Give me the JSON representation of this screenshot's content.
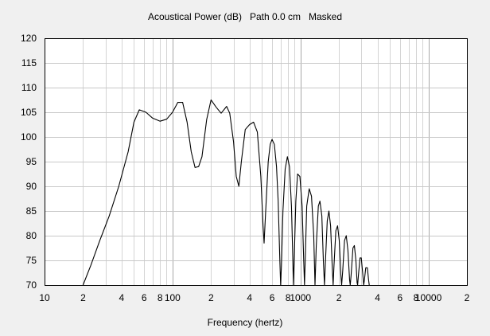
{
  "chart_data": {
    "type": "line",
    "title": "Acoustical Power (dB)   Path 0.0 cm   Masked",
    "xlabel": "Frequency (hertz)",
    "ylabel": "",
    "x_scale": "log",
    "xlim": [
      10,
      20000
    ],
    "ylim": [
      70,
      120
    ],
    "grid": true,
    "legend": "none",
    "y_ticks": [
      70,
      75,
      80,
      85,
      90,
      95,
      100,
      105,
      110,
      115,
      120
    ],
    "x_ticks": [
      {
        "value": 10,
        "label": "10"
      },
      {
        "value": 20,
        "label": "2"
      },
      {
        "value": 40,
        "label": "4"
      },
      {
        "value": 60,
        "label": "6"
      },
      {
        "value": 80,
        "label": "8"
      },
      {
        "value": 100,
        "label": "100"
      },
      {
        "value": 200,
        "label": "2"
      },
      {
        "value": 400,
        "label": "4"
      },
      {
        "value": 600,
        "label": "6"
      },
      {
        "value": 800,
        "label": "8"
      },
      {
        "value": 1000,
        "label": "1000"
      },
      {
        "value": 2000,
        "label": "2"
      },
      {
        "value": 4000,
        "label": "4"
      },
      {
        "value": 6000,
        "label": "6"
      },
      {
        "value": 8000,
        "label": "8"
      },
      {
        "value": 10000,
        "label": "10000"
      },
      {
        "value": 20000,
        "label": "2"
      }
    ],
    "series": [
      {
        "color": "#000000",
        "points": [
          [
            20,
            70
          ],
          [
            23,
            74
          ],
          [
            27,
            79
          ],
          [
            32,
            84
          ],
          [
            38,
            90
          ],
          [
            45,
            97
          ],
          [
            50,
            103
          ],
          [
            55,
            105.5
          ],
          [
            62,
            105
          ],
          [
            70,
            103.8
          ],
          [
            80,
            103.2
          ],
          [
            90,
            103.6
          ],
          [
            100,
            105
          ],
          [
            110,
            107
          ],
          [
            120,
            107
          ],
          [
            130,
            103
          ],
          [
            140,
            97
          ],
          [
            150,
            93.8
          ],
          [
            160,
            94
          ],
          [
            170,
            96
          ],
          [
            185,
            103.5
          ],
          [
            200,
            107.5
          ],
          [
            220,
            106
          ],
          [
            240,
            104.8
          ],
          [
            265,
            106.2
          ],
          [
            280,
            104.8
          ],
          [
            300,
            99
          ],
          [
            315,
            92
          ],
          [
            330,
            90
          ],
          [
            345,
            95
          ],
          [
            370,
            101.5
          ],
          [
            400,
            102.5
          ],
          [
            430,
            103
          ],
          [
            460,
            101
          ],
          [
            490,
            92
          ],
          [
            510,
            82
          ],
          [
            520,
            78.5
          ],
          [
            535,
            85
          ],
          [
            560,
            95
          ],
          [
            580,
            98.5
          ],
          [
            600,
            99.5
          ],
          [
            625,
            98.5
          ],
          [
            650,
            94
          ],
          [
            670,
            87
          ],
          [
            690,
            75
          ],
          [
            700,
            70
          ],
          [
            710,
            74
          ],
          [
            730,
            85
          ],
          [
            760,
            93.5
          ],
          [
            790,
            96
          ],
          [
            820,
            94
          ],
          [
            850,
            86
          ],
          [
            870,
            76
          ],
          [
            880,
            70
          ],
          [
            895,
            76
          ],
          [
            920,
            87
          ],
          [
            950,
            92.5
          ],
          [
            990,
            92
          ],
          [
            1030,
            86
          ],
          [
            1060,
            75
          ],
          [
            1075,
            70
          ],
          [
            1090,
            75
          ],
          [
            1120,
            86
          ],
          [
            1170,
            89.5
          ],
          [
            1220,
            88
          ],
          [
            1270,
            80
          ],
          [
            1300,
            70
          ],
          [
            1330,
            78
          ],
          [
            1380,
            86
          ],
          [
            1420,
            87
          ],
          [
            1470,
            84
          ],
          [
            1510,
            75
          ],
          [
            1540,
            70
          ],
          [
            1570,
            75
          ],
          [
            1620,
            83
          ],
          [
            1670,
            85
          ],
          [
            1720,
            82
          ],
          [
            1770,
            74
          ],
          [
            1800,
            70
          ],
          [
            1830,
            74
          ],
          [
            1890,
            81
          ],
          [
            1950,
            82
          ],
          [
            2010,
            79
          ],
          [
            2070,
            72
          ],
          [
            2100,
            70
          ],
          [
            2140,
            73
          ],
          [
            2210,
            79
          ],
          [
            2280,
            80
          ],
          [
            2350,
            77
          ],
          [
            2420,
            71
          ],
          [
            2450,
            70
          ],
          [
            2490,
            72
          ],
          [
            2570,
            77.5
          ],
          [
            2640,
            78
          ],
          [
            2710,
            75
          ],
          [
            2770,
            70.5
          ],
          [
            2800,
            70
          ],
          [
            2840,
            72
          ],
          [
            2920,
            75.5
          ],
          [
            2990,
            75.5
          ],
          [
            3060,
            72.5
          ],
          [
            3120,
            70
          ],
          [
            3160,
            71
          ],
          [
            3240,
            73.5
          ],
          [
            3330,
            73.5
          ],
          [
            3410,
            71
          ],
          [
            3450,
            70
          ]
        ]
      }
    ]
  }
}
